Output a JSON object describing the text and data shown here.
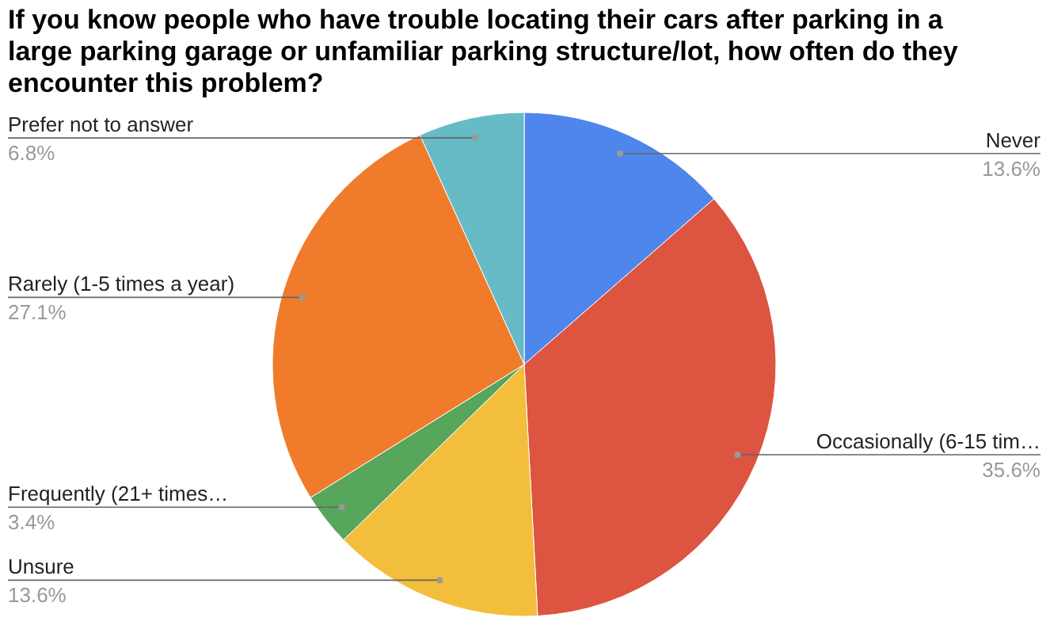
{
  "chart_data": {
    "type": "pie",
    "title": "If you know people who have trouble locating their cars after parking in a large parking garage or unfamiliar parking structure/lot, how often do they encounter this problem?",
    "categories": [
      "Never",
      "Occasionally (6-15 tim…",
      "Unsure",
      "Frequently (21+ times…",
      "Rarely (1-5 times a year)",
      "Prefer not to answer"
    ],
    "values": [
      13.6,
      35.6,
      13.6,
      3.4,
      27.1,
      6.8
    ],
    "value_labels": [
      "13.6%",
      "35.6%",
      "13.6%",
      "3.4%",
      "27.1%",
      "6.8%"
    ],
    "colors": [
      "#4f86ec",
      "#dd5440",
      "#f3be3c",
      "#58a55c",
      "#f07b2a",
      "#66bbc6"
    ]
  }
}
